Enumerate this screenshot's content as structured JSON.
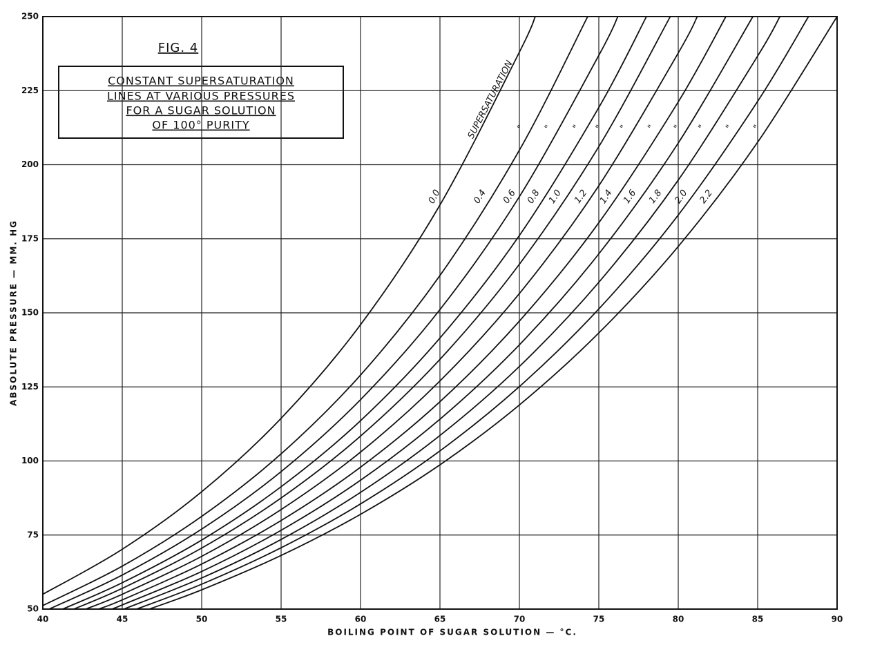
{
  "chart_data": {
    "type": "line",
    "fig_label": "FIG. 4",
    "title_lines": [
      "CONSTANT SUPERSATURATION",
      "LINES AT VARIOUS PRESSURES",
      "FOR A SUGAR SOLUTION",
      "OF 100° PURITY"
    ],
    "x_label": "BOILING POINT OF SUGAR SOLUTION — °C.",
    "y_label": "ABSOLUTE PRESSURE — MM. HG",
    "curve_annotation": "SUPERSATURATION",
    "ditto_marks": [
      "\"",
      "\"",
      "\"",
      "\"",
      "\"",
      "\"",
      "\"",
      "\"",
      "\"",
      "\""
    ],
    "xlim": [
      40,
      90
    ],
    "ylim": [
      50,
      250
    ],
    "xticks": [
      40,
      45,
      50,
      55,
      60,
      65,
      70,
      75,
      80,
      85,
      90
    ],
    "yticks": [
      50,
      75,
      100,
      125,
      150,
      175,
      200,
      225,
      250
    ],
    "grid": true,
    "line_color": "#111111",
    "series": [
      {
        "name": "0.0",
        "x": [
          40,
          45,
          50,
          55,
          60,
          65,
          70,
          71
        ],
        "values": [
          55.0,
          70.2,
          89.6,
          114.4,
          146.0,
          186.4,
          238.0,
          250
        ]
      },
      {
        "name": "0.4",
        "x": [
          40,
          45,
          50,
          55,
          60,
          65,
          70,
          74.3
        ],
        "values": [
          51.2,
          64.5,
          81.3,
          102.4,
          129.0,
          162.6,
          204.9,
          250
        ]
      },
      {
        "name": "0.6",
        "x": [
          40.4,
          45,
          50,
          55,
          60,
          65,
          70,
          75,
          76.2
        ],
        "values": [
          50,
          61.5,
          77.0,
          96.4,
          120.7,
          151.1,
          189.2,
          236.9,
          250
        ]
      },
      {
        "name": "0.8",
        "x": [
          41.25,
          45,
          50,
          55,
          60,
          65,
          70,
          75,
          78
        ],
        "values": [
          50,
          58.9,
          73.3,
          91.3,
          113.6,
          141.5,
          176.1,
          219.3,
          250
        ]
      },
      {
        "name": "1.0",
        "x": [
          41.95,
          45,
          50,
          55,
          60,
          65,
          70,
          75,
          79.5
        ],
        "values": [
          50,
          57.0,
          70.6,
          87.5,
          108.4,
          134.3,
          166.4,
          206.1,
          250
        ]
      },
      {
        "name": "1.2",
        "x": [
          42.7,
          45,
          50,
          55,
          60,
          65,
          70,
          75,
          80,
          81.2
        ],
        "values": [
          50,
          55.0,
          67.8,
          83.6,
          103.0,
          127.0,
          156.5,
          192.9,
          237.7,
          250
        ]
      },
      {
        "name": "1.4",
        "x": [
          43.5,
          45,
          50,
          55,
          60,
          65,
          70,
          75,
          80,
          83
        ],
        "values": [
          50,
          53.1,
          65.2,
          79.9,
          97.9,
          120.0,
          147.2,
          180.4,
          221.2,
          250
        ]
      },
      {
        "name": "1.6",
        "x": [
          44.3,
          45,
          50,
          55,
          60,
          65,
          70,
          75,
          80,
          84.7
        ],
        "values": [
          50,
          51.4,
          62.7,
          76.6,
          93.5,
          114.1,
          139.2,
          169.9,
          207.3,
          250
        ]
      },
      {
        "name": "1.8",
        "x": [
          45.1,
          50,
          55,
          60,
          65,
          70,
          75,
          80,
          85,
          86.4
        ],
        "values": [
          50,
          60.5,
          73.5,
          89.4,
          108.6,
          131.9,
          160.3,
          194.8,
          236.7,
          250
        ]
      },
      {
        "name": "2.0",
        "x": [
          45.9,
          50,
          55,
          60,
          65,
          70,
          75,
          80,
          85,
          88.2
        ],
        "values": [
          50,
          58.4,
          70.7,
          85.5,
          103.4,
          125.1,
          151.3,
          183.0,
          221.4,
          250
        ]
      },
      {
        "name": "2.2",
        "x": [
          46.7,
          50,
          55,
          60,
          65,
          70,
          75,
          80,
          85,
          90
        ],
        "values": [
          50,
          56.5,
          68.1,
          82.0,
          98.7,
          118.9,
          143.2,
          172.4,
          207.6,
          250
        ]
      }
    ]
  }
}
